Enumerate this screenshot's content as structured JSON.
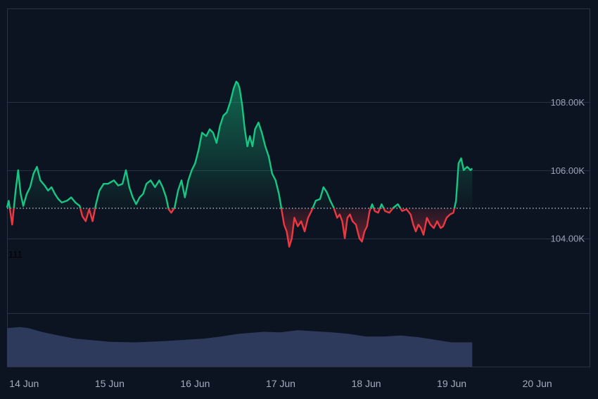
{
  "colors": {
    "background": "#0d1421",
    "frame": "#2a3244",
    "grid": "#283042",
    "up_line": "#16c784",
    "down_line": "#ea3943",
    "up_fill": "#16c784",
    "down_fill": "#ea3943",
    "baseline": "#c8cdd6",
    "volume": "#2e3a5c",
    "axis_text": "#a3adbd"
  },
  "chart_data": {
    "type": "area",
    "title": "",
    "xlabel": "",
    "ylabel": "",
    "baseline": 104.88,
    "ylim": [
      101.8,
      110.75
    ],
    "y_ticks": [
      {
        "value": 104,
        "label": "104.00K"
      },
      {
        "value": 106,
        "label": "106.00K"
      },
      {
        "value": 108,
        "label": "108.00K"
      }
    ],
    "x_ticks": [
      "14 Jun",
      "15 Jun",
      "16 Jun",
      "17 Jun",
      "18 Jun",
      "19 Jun",
      "20 Jun"
    ],
    "x_range_days": [
      13.8,
      20.62
    ],
    "stray_label": "111",
    "series": [
      {
        "values": [
          [
            13.8,
            104.9
          ],
          [
            13.82,
            105.1
          ],
          [
            13.86,
            104.4
          ],
          [
            13.9,
            105.4
          ],
          [
            13.93,
            106.0
          ],
          [
            13.96,
            105.3
          ],
          [
            13.99,
            104.95
          ],
          [
            14.03,
            105.3
          ],
          [
            14.07,
            105.5
          ],
          [
            14.11,
            105.9
          ],
          [
            14.15,
            106.1
          ],
          [
            14.19,
            105.7
          ],
          [
            14.24,
            105.55
          ],
          [
            14.28,
            105.4
          ],
          [
            14.32,
            105.5
          ],
          [
            14.36,
            105.3
          ],
          [
            14.4,
            105.15
          ],
          [
            14.44,
            105.05
          ],
          [
            14.5,
            105.1
          ],
          [
            14.55,
            105.2
          ],
          [
            14.6,
            105.05
          ],
          [
            14.65,
            104.95
          ],
          [
            14.68,
            104.65
          ],
          [
            14.72,
            104.5
          ],
          [
            14.76,
            104.85
          ],
          [
            14.8,
            104.5
          ],
          [
            14.84,
            105.0
          ],
          [
            14.88,
            105.4
          ],
          [
            14.93,
            105.6
          ],
          [
            14.98,
            105.6
          ],
          [
            15.05,
            105.7
          ],
          [
            15.1,
            105.55
          ],
          [
            15.15,
            105.6
          ],
          [
            15.19,
            106.0
          ],
          [
            15.23,
            105.5
          ],
          [
            15.27,
            105.2
          ],
          [
            15.31,
            105.0
          ],
          [
            15.35,
            105.2
          ],
          [
            15.39,
            105.3
          ],
          [
            15.43,
            105.6
          ],
          [
            15.48,
            105.7
          ],
          [
            15.53,
            105.5
          ],
          [
            15.58,
            105.7
          ],
          [
            15.62,
            105.5
          ],
          [
            15.66,
            105.2
          ],
          [
            15.69,
            104.85
          ],
          [
            15.72,
            104.75
          ],
          [
            15.76,
            104.9
          ],
          [
            15.8,
            105.4
          ],
          [
            15.84,
            105.7
          ],
          [
            15.88,
            105.2
          ],
          [
            15.92,
            105.7
          ],
          [
            15.96,
            106.0
          ],
          [
            16.0,
            106.2
          ],
          [
            16.04,
            106.6
          ],
          [
            16.08,
            107.1
          ],
          [
            16.13,
            107.0
          ],
          [
            16.17,
            107.2
          ],
          [
            16.21,
            107.1
          ],
          [
            16.25,
            106.8
          ],
          [
            16.29,
            107.3
          ],
          [
            16.33,
            107.6
          ],
          [
            16.37,
            107.7
          ],
          [
            16.41,
            108.0
          ],
          [
            16.45,
            108.4
          ],
          [
            16.48,
            108.6
          ],
          [
            16.5,
            108.55
          ],
          [
            16.52,
            108.4
          ],
          [
            16.55,
            107.9
          ],
          [
            16.58,
            107.2
          ],
          [
            16.61,
            106.7
          ],
          [
            16.64,
            107.0
          ],
          [
            16.67,
            106.7
          ],
          [
            16.7,
            107.2
          ],
          [
            16.74,
            107.4
          ],
          [
            16.78,
            107.1
          ],
          [
            16.82,
            106.7
          ],
          [
            16.86,
            106.4
          ],
          [
            16.9,
            105.9
          ],
          [
            16.94,
            105.7
          ],
          [
            16.98,
            105.3
          ],
          [
            17.01,
            104.85
          ],
          [
            17.04,
            104.4
          ],
          [
            17.07,
            104.2
          ],
          [
            17.1,
            103.75
          ],
          [
            17.13,
            104.0
          ],
          [
            17.16,
            104.6
          ],
          [
            17.2,
            104.35
          ],
          [
            17.24,
            104.5
          ],
          [
            17.28,
            104.2
          ],
          [
            17.32,
            104.6
          ],
          [
            17.36,
            104.8
          ],
          [
            17.41,
            105.1
          ],
          [
            17.46,
            105.15
          ],
          [
            17.5,
            105.5
          ],
          [
            17.54,
            105.35
          ],
          [
            17.58,
            105.1
          ],
          [
            17.62,
            104.9
          ],
          [
            17.66,
            104.6
          ],
          [
            17.69,
            104.7
          ],
          [
            17.72,
            104.5
          ],
          [
            17.75,
            104.0
          ],
          [
            17.78,
            104.6
          ],
          [
            17.81,
            104.7
          ],
          [
            17.84,
            104.5
          ],
          [
            17.88,
            104.4
          ],
          [
            17.92,
            104.0
          ],
          [
            17.95,
            103.9
          ],
          [
            17.98,
            104.2
          ],
          [
            18.01,
            104.35
          ],
          [
            18.04,
            104.8
          ],
          [
            18.07,
            105.0
          ],
          [
            18.1,
            104.8
          ],
          [
            18.14,
            104.75
          ],
          [
            18.18,
            105.0
          ],
          [
            18.22,
            104.8
          ],
          [
            18.27,
            104.75
          ],
          [
            18.32,
            104.9
          ],
          [
            18.37,
            105.0
          ],
          [
            18.42,
            104.8
          ],
          [
            18.47,
            104.85
          ],
          [
            18.52,
            104.7
          ],
          [
            18.55,
            104.4
          ],
          [
            18.58,
            104.2
          ],
          [
            18.61,
            104.4
          ],
          [
            18.64,
            104.3
          ],
          [
            18.67,
            104.1
          ],
          [
            18.71,
            104.6
          ],
          [
            18.75,
            104.4
          ],
          [
            18.79,
            104.3
          ],
          [
            18.83,
            104.5
          ],
          [
            18.87,
            104.3
          ],
          [
            18.9,
            104.35
          ],
          [
            18.94,
            104.6
          ],
          [
            18.98,
            104.7
          ],
          [
            19.02,
            104.75
          ],
          [
            19.05,
            105.1
          ],
          [
            19.08,
            106.2
          ],
          [
            19.11,
            106.35
          ],
          [
            19.14,
            106.0
          ],
          [
            19.18,
            106.1
          ],
          [
            19.22,
            106.0
          ],
          [
            19.24,
            106.05
          ]
        ]
      }
    ],
    "volume": {
      "days": [
        13.8,
        13.95,
        14.05,
        14.2,
        14.4,
        14.6,
        14.8,
        15.0,
        15.3,
        15.6,
        15.9,
        16.1,
        16.3,
        16.5,
        16.8,
        17.0,
        17.2,
        17.4,
        17.6,
        17.8,
        18.0,
        18.2,
        18.4,
        18.6,
        18.8,
        19.0,
        19.2,
        19.24
      ],
      "values": [
        73,
        75,
        73,
        66,
        59,
        53,
        50,
        47,
        46,
        48,
        51,
        53,
        57,
        62,
        66,
        65,
        69,
        67,
        65,
        62,
        57,
        57,
        59,
        56,
        51,
        46,
        46,
        46
      ]
    }
  }
}
